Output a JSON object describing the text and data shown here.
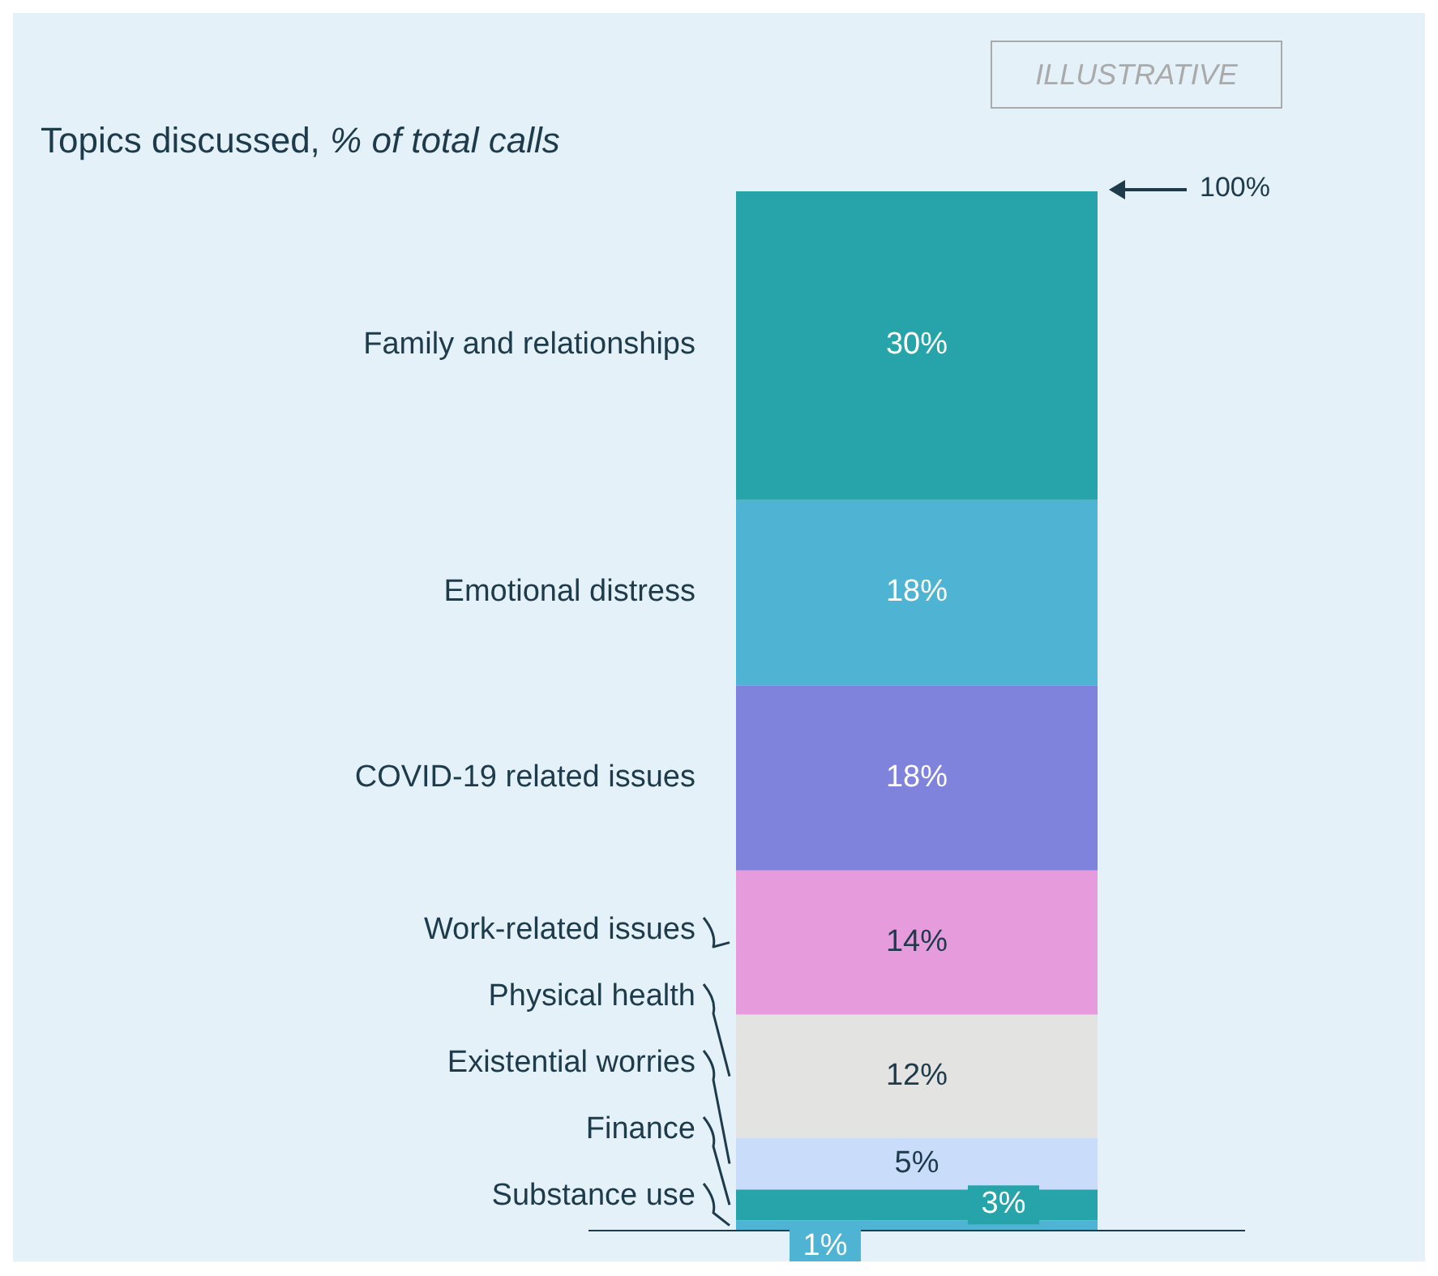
{
  "chart_data": {
    "type": "bar",
    "stacked": true,
    "title": "Topics discussed,",
    "subtitle": "% of total calls",
    "categories": [
      null
    ],
    "series": [
      {
        "name": "Substance use",
        "color": "#4fb3d3",
        "values": [
          1
        ],
        "value_labels": [
          "1%"
        ]
      },
      {
        "name": "Finance",
        "color": "#27a3aa",
        "values": [
          3
        ],
        "value_labels": [
          "3%"
        ]
      },
      {
        "name": "Existential worries",
        "color": "#c9dcf9",
        "values": [
          5
        ],
        "value_labels": [
          "5%"
        ]
      },
      {
        "name": "Physical health",
        "color": "#e3e3e1",
        "values": [
          12
        ],
        "value_labels": [
          "12%"
        ]
      },
      {
        "name": "Work-related issues",
        "color": "#e59bdc",
        "values": [
          14
        ],
        "value_labels": [
          "14%"
        ]
      },
      {
        "name": "COVID-19 related issues",
        "color": "#8083dc",
        "values": [
          18
        ],
        "value_labels": [
          "18%"
        ]
      },
      {
        "name": "Emotional distress",
        "color": "#4fb3d3",
        "values": [
          18
        ],
        "value_labels": [
          "18%"
        ]
      },
      {
        "name": "Family and relationships",
        "color": "#27a3aa",
        "values": [
          30
        ],
        "value_labels": [
          "30%"
        ]
      }
    ],
    "annotations": [
      "ILLUSTRATIVE",
      "100%"
    ]
  }
}
